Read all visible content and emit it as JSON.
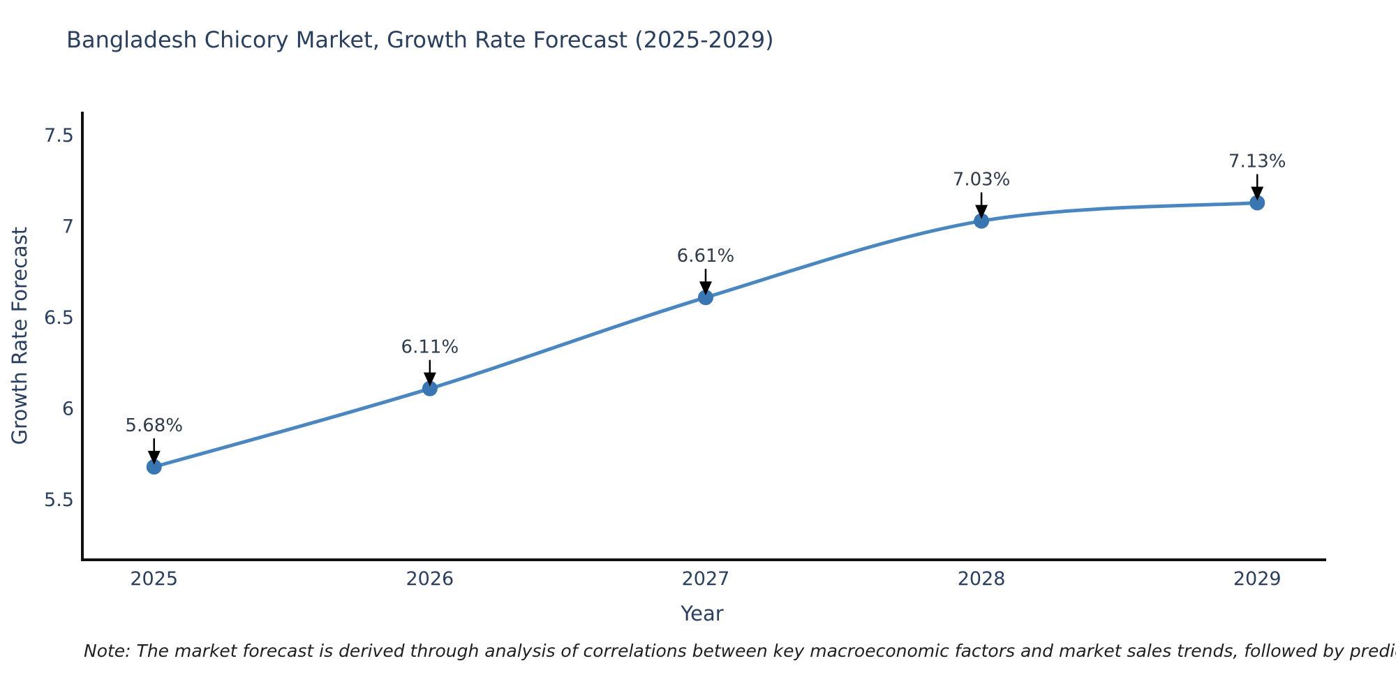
{
  "page": {
    "background": "#ffffff"
  },
  "chart_data": {
    "type": "line",
    "title": "Bangladesh Chicory Market, Growth Rate Forecast (2025-2029)",
    "xlabel": "Year",
    "ylabel": "Growth Rate Forecast",
    "x": [
      2025,
      2026,
      2027,
      2028,
      2029
    ],
    "y": [
      5.68,
      6.11,
      6.61,
      7.03,
      7.13
    ],
    "point_labels": [
      "5.68%",
      "6.11%",
      "6.61%",
      "7.03%",
      "7.13%"
    ],
    "x_tick_labels": [
      "2025",
      "2026",
      "2027",
      "2028",
      "2029"
    ],
    "x_tick_values": [
      2025,
      2026,
      2027,
      2028,
      2029
    ],
    "y_tick_values": [
      5.5,
      6,
      6.5,
      7,
      7.5
    ],
    "y_tick_labels": [
      "5.5",
      "6",
      "6.5",
      "7",
      "7.5"
    ],
    "xlim": [
      2024.74,
      2029.25
    ],
    "ylim": [
      5.17,
      7.63
    ],
    "line_shape": "spline",
    "grid": false,
    "legend_position": "none",
    "colors": {
      "line": "#4a86bf",
      "marker": "#3a77b2",
      "arrow": "#000000",
      "tick_text": "#2a3f5f",
      "annotation_text": "#2f3b4a",
      "axis_spine": "#111111"
    }
  },
  "note": {
    "text": "Note: The market forecast is derived through analysis of correlations between key macroeconomic factors and market sales trends, followed by predictive modeling to project future sales"
  }
}
